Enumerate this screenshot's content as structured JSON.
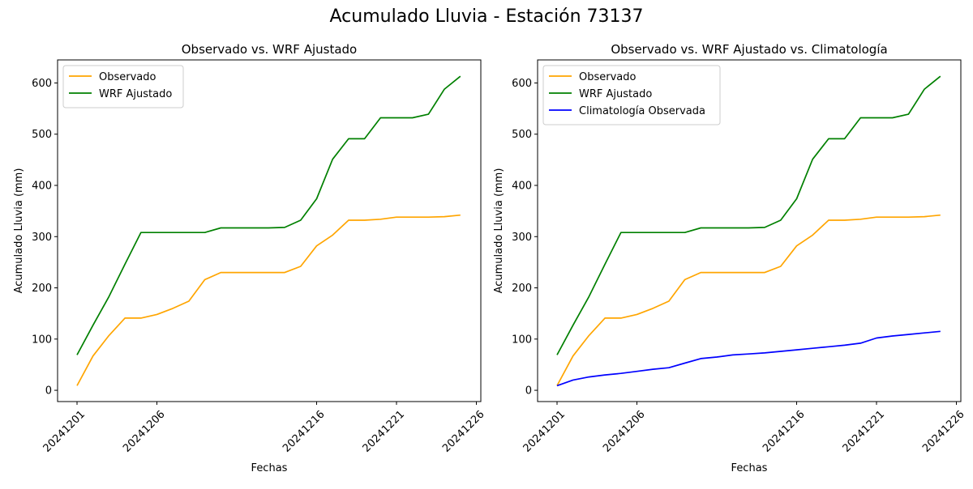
{
  "figure": {
    "suptitle": "Acumulado Lluvia - Estación 73137"
  },
  "colors": {
    "observado": "#ffa500",
    "wrf": "#008000",
    "clima": "#0000ff"
  },
  "chart_data": [
    {
      "type": "line",
      "title": "Observado vs. WRF Ajustado",
      "xlabel": "Fechas",
      "ylabel": "Acumulado Lluvia (mm)",
      "x": [
        "20241201",
        "20241202",
        "20241203",
        "20241204",
        "20241205",
        "20241206",
        "20241207",
        "20241208",
        "20241209",
        "20241210",
        "20241211",
        "20241212",
        "20241213",
        "20241214",
        "20241215",
        "20241216",
        "20241217",
        "20241218",
        "20241219",
        "20241220",
        "20241221",
        "20241222",
        "20241223",
        "20241224",
        "20241225"
      ],
      "xticks": [
        "20241201",
        "20241206",
        "20241216",
        "20241221",
        "20241226"
      ],
      "yticks": [
        0,
        100,
        200,
        300,
        400,
        500,
        600
      ],
      "ylim": [
        -22,
        645
      ],
      "legend": "top-left",
      "series": [
        {
          "name": "Observado",
          "color": "#ffa500",
          "values": [
            9,
            67,
            107,
            141,
            141,
            148,
            160,
            174,
            216,
            230,
            230,
            230,
            230,
            230,
            242,
            282,
            303,
            332,
            332,
            334,
            338,
            338,
            338,
            339,
            342
          ]
        },
        {
          "name": "WRF Ajustado",
          "color": "#008000",
          "values": [
            69,
            127,
            183,
            246,
            308,
            308,
            308,
            308,
            308,
            317,
            317,
            317,
            317,
            318,
            332,
            374,
            451,
            491,
            491,
            532,
            532,
            532,
            539,
            588,
            613
          ]
        }
      ]
    },
    {
      "type": "line",
      "title": "Observado vs. WRF Ajustado vs. Climatología",
      "xlabel": "Fechas",
      "ylabel": "Acumulado Lluvia (mm)",
      "x": [
        "20241201",
        "20241202",
        "20241203",
        "20241204",
        "20241205",
        "20241206",
        "20241207",
        "20241208",
        "20241209",
        "20241210",
        "20241211",
        "20241212",
        "20241213",
        "20241214",
        "20241215",
        "20241216",
        "20241217",
        "20241218",
        "20241219",
        "20241220",
        "20241221",
        "20241222",
        "20241223",
        "20241224",
        "20241225"
      ],
      "xticks": [
        "20241201",
        "20241206",
        "20241216",
        "20241221",
        "20241226"
      ],
      "yticks": [
        0,
        100,
        200,
        300,
        400,
        500,
        600
      ],
      "ylim": [
        -22,
        645
      ],
      "legend": "top-left",
      "series": [
        {
          "name": "Observado",
          "color": "#ffa500",
          "values": [
            9,
            67,
            107,
            141,
            141,
            148,
            160,
            174,
            216,
            230,
            230,
            230,
            230,
            230,
            242,
            282,
            303,
            332,
            332,
            334,
            338,
            338,
            338,
            339,
            342
          ]
        },
        {
          "name": "WRF Ajustado",
          "color": "#008000",
          "values": [
            69,
            127,
            183,
            246,
            308,
            308,
            308,
            308,
            308,
            317,
            317,
            317,
            317,
            318,
            332,
            374,
            451,
            491,
            491,
            532,
            532,
            532,
            539,
            588,
            613
          ]
        },
        {
          "name": "Climatología Observada",
          "color": "#0000ff",
          "values": [
            9,
            20,
            26,
            30,
            33,
            37,
            41,
            44,
            53,
            62,
            65,
            69,
            71,
            73,
            76,
            79,
            82,
            85,
            88,
            92,
            102,
            106,
            109,
            112,
            115
          ]
        }
      ]
    }
  ]
}
